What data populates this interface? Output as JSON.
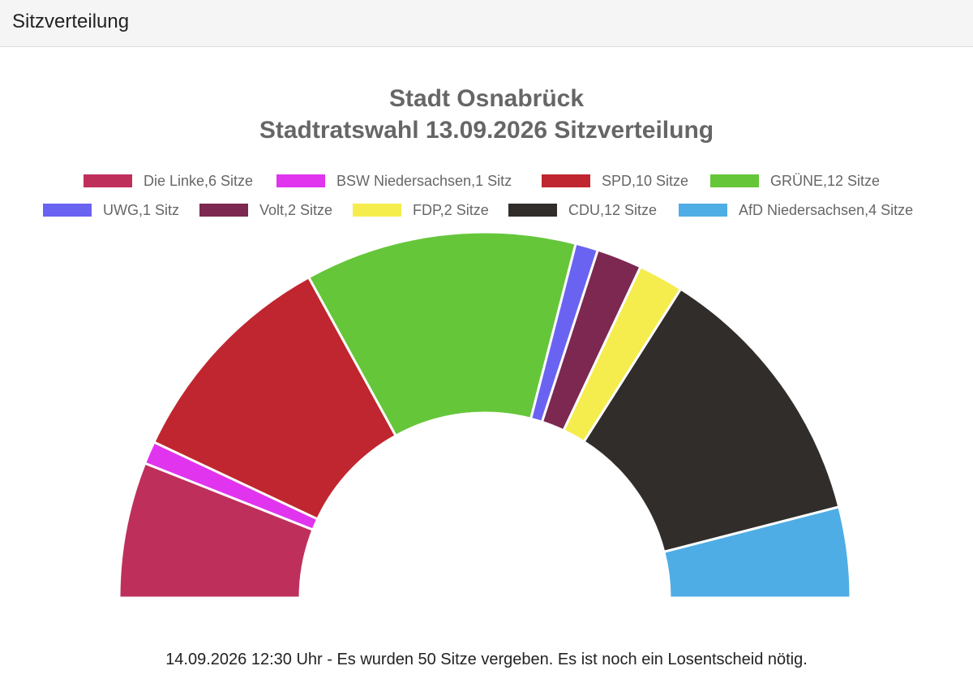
{
  "panel": {
    "title": "Sitzverteilung"
  },
  "footer": {
    "note": "14.09.2026 12:30 Uhr - Es wurden 50 Sitze vergeben. Es ist noch ein Losentscheid nötig."
  },
  "chart_data": {
    "type": "pie",
    "subtype": "half-doughnut (parliament)",
    "title": [
      "Stadt Osnabrück",
      "Stadtratswahl 13.09.2026 Sitzverteilung"
    ],
    "legend_position": "top",
    "total": 50,
    "series": [
      {
        "name": "Die Linke",
        "label": "Die Linke,6 Sitze",
        "value": 6,
        "color": "#be2f5c"
      },
      {
        "name": "BSW Niedersachsen",
        "label": "BSW Niedersachsen,1 Sitz",
        "value": 1,
        "color": "#e034ee"
      },
      {
        "name": "SPD",
        "label": "SPD,10 Sitze",
        "value": 10,
        "color": "#c0262f"
      },
      {
        "name": "GRÜNE",
        "label": "GRÜNE,12 Sitze",
        "value": 12,
        "color": "#66c63a"
      },
      {
        "name": "UWG",
        "label": "UWG,1 Sitz",
        "value": 1,
        "color": "#6a63f2"
      },
      {
        "name": "Volt",
        "label": "Volt,2 Sitze",
        "value": 2,
        "color": "#7c2850"
      },
      {
        "name": "FDP",
        "label": "FDP,2 Sitze",
        "value": 2,
        "color": "#f5ec4e"
      },
      {
        "name": "CDU",
        "label": "CDU,12 Sitze",
        "value": 12,
        "color": "#302d2b"
      },
      {
        "name": "AfD Niedersachsen",
        "label": "AfD Niedersachsen,4 Sitze",
        "value": 4,
        "color": "#4fade5"
      }
    ]
  }
}
